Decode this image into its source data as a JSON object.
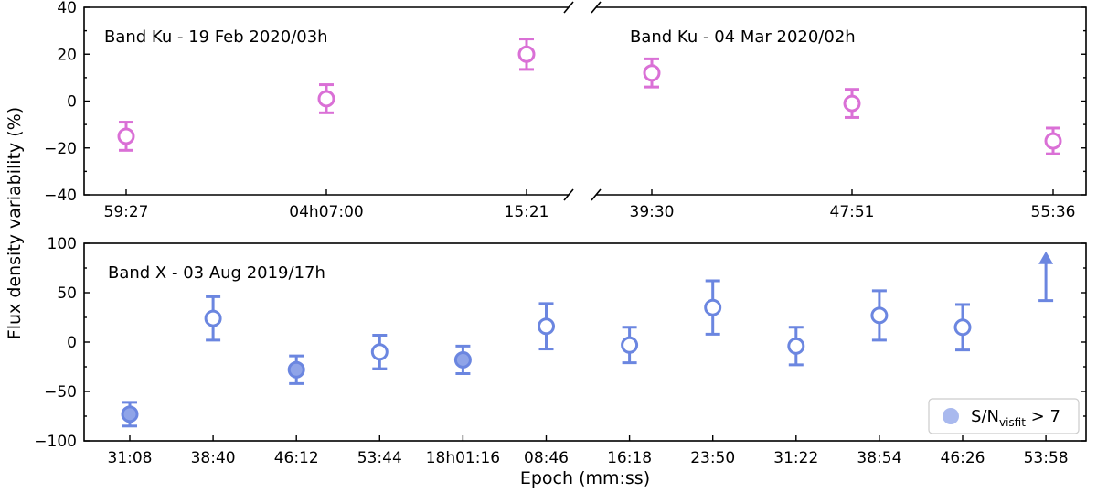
{
  "chart_data": [
    {
      "type": "scatter",
      "panel": "top-left",
      "title": "Band Ku - 19 Feb 2020/03h",
      "ylabel": "Flux density variability (%)",
      "ylim": [
        -40,
        40
      ],
      "yticks": [
        -40,
        -20,
        0,
        20,
        40
      ],
      "categories": [
        "59:27",
        "04h07:00",
        "15:21"
      ],
      "x_index": [
        0,
        1,
        2
      ],
      "series": [
        {
          "values": [
            -15,
            1,
            20
          ],
          "err": [
            6,
            6,
            6.5
          ],
          "color": "#da70d6"
        }
      ]
    },
    {
      "type": "scatter",
      "panel": "top-right",
      "title": "Band Ku - 04 Mar 2020/02h",
      "ylim": [
        -40,
        40
      ],
      "categories": [
        "39:30",
        "47:51",
        "55:36"
      ],
      "x_index": [
        0,
        1,
        2
      ],
      "series": [
        {
          "values": [
            12,
            -1,
            -17
          ],
          "err": [
            6,
            6,
            5.5
          ],
          "color": "#da70d6"
        }
      ]
    },
    {
      "type": "scatter",
      "panel": "bottom",
      "title": "Band X - 03 Aug 2019/17h",
      "xlabel": "Epoch (mm:ss)",
      "ylim": [
        -100,
        100
      ],
      "yticks": [
        -100,
        -50,
        0,
        50,
        100
      ],
      "categories": [
        "31:08",
        "38:40",
        "46:12",
        "53:44",
        "18h01:16",
        "08:46",
        "16:18",
        "23:50",
        "31:22",
        "38:54",
        "46:26",
        "53:58"
      ],
      "series": [
        {
          "values": [
            -73,
            24,
            -28,
            -10,
            -18,
            16,
            -3,
            35,
            -4,
            27,
            15,
            null
          ],
          "err": [
            12,
            22,
            14,
            17,
            14,
            23,
            18,
            27,
            19,
            25,
            23,
            null
          ],
          "highlight": [
            true,
            false,
            true,
            false,
            true,
            false,
            false,
            false,
            false,
            false,
            false,
            false
          ],
          "color": "#6b86e0",
          "fill_color": "#8fa4e8"
        }
      ],
      "lower_limit": {
        "category": "53:58",
        "value": 42,
        "arrow_to": 90
      },
      "legend": {
        "label_main": "S/N",
        "label_sub": "visfit",
        "label_tail": " > 7",
        "placement": "lower-right",
        "color": "#a9b9ee"
      }
    }
  ]
}
